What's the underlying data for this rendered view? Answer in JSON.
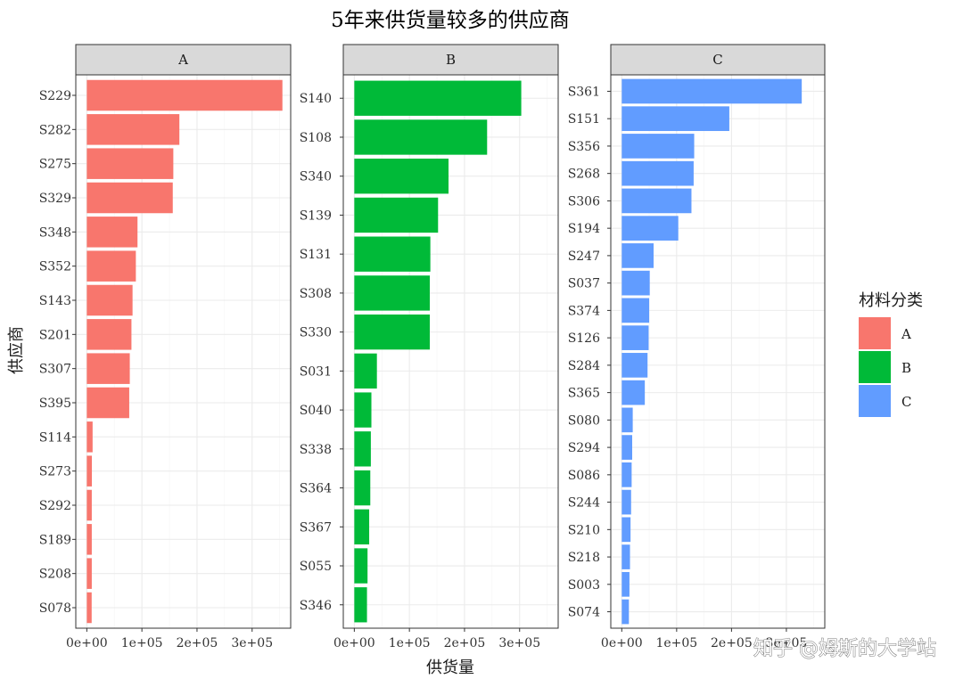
{
  "chart_data": {
    "type": "bar",
    "orientation": "horizontal",
    "title": "5年来供货量较多的供应商",
    "xlabel": "供货量",
    "ylabel": "供应商",
    "xlim": [
      -20000,
      370000
    ],
    "x_ticks": [
      0,
      100000,
      200000,
      300000
    ],
    "x_tick_labels": [
      "0e+00",
      "1e+05",
      "2e+05",
      "3e+05"
    ],
    "grid": true,
    "legend": {
      "title": "材料分类",
      "position": "right",
      "entries": [
        "A",
        "B",
        "C"
      ]
    },
    "colors": {
      "A": "#F8766D",
      "B": "#00BA38",
      "C": "#619CFF"
    },
    "panels": [
      {
        "facet": "A",
        "categories": [
          "S229",
          "S282",
          "S275",
          "S329",
          "S348",
          "S352",
          "S143",
          "S201",
          "S307",
          "S395",
          "S114",
          "S273",
          "S292",
          "S189",
          "S208",
          "S078"
        ],
        "values": [
          355000,
          168000,
          157000,
          156000,
          92000,
          89000,
          83000,
          81000,
          78000,
          77000,
          10500,
          9200,
          9000,
          9000,
          9000,
          8800
        ]
      },
      {
        "facet": "B",
        "categories": [
          "S140",
          "S108",
          "S340",
          "S139",
          "S131",
          "S308",
          "S330",
          "S031",
          "S040",
          "S338",
          "S364",
          "S367",
          "S055",
          "S346"
        ],
        "values": [
          303000,
          241000,
          171000,
          152000,
          138000,
          137000,
          137000,
          41000,
          31000,
          30000,
          29000,
          27000,
          24000,
          23000
        ]
      },
      {
        "facet": "C",
        "categories": [
          "S361",
          "S151",
          "S356",
          "S268",
          "S306",
          "S194",
          "S247",
          "S037",
          "S374",
          "S126",
          "S284",
          "S365",
          "S080",
          "S294",
          "S086",
          "S244",
          "S210",
          "S218",
          "S003",
          "S074"
        ],
        "values": [
          328000,
          196000,
          132000,
          131000,
          127000,
          103000,
          58000,
          51000,
          50000,
          49000,
          47000,
          42000,
          20000,
          19000,
          18000,
          17000,
          16000,
          15000,
          14000,
          13000
        ]
      }
    ]
  },
  "watermark": "知乎 @姆斯的大学站"
}
